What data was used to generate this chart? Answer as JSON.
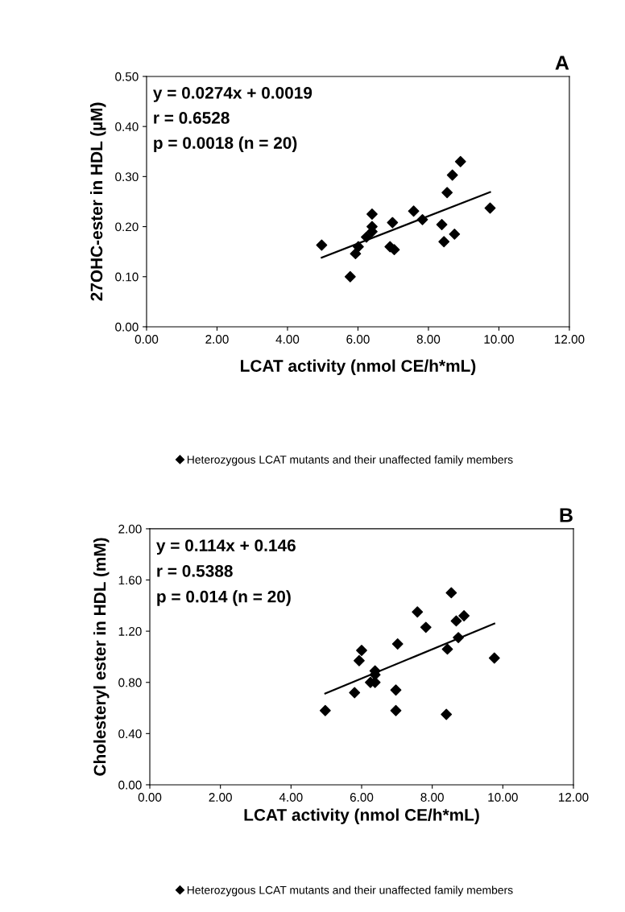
{
  "chart_data": [
    {
      "type": "scatter",
      "title": "A",
      "xlabel": "LCAT activity (nmol CE/h*mL)",
      "ylabel": "27OHC-ester in HDL (µM)",
      "annotations": [
        "y = 0.0274x + 0.0019",
        "r = 0.6528",
        "p = 0.0018 (n = 20)"
      ],
      "series": [
        {
          "name": "Heterozygous LCAT mutants and their unaffected family members",
          "color": "#000000",
          "marker": "diamond",
          "x": [
            4.97,
            5.78,
            5.93,
            6.01,
            6.24,
            6.4,
            6.4,
            6.4,
            6.91,
            7.03,
            6.98,
            7.58,
            7.83,
            8.38,
            8.44,
            8.53,
            8.68,
            8.74,
            8.91,
            9.75
          ],
          "values": [
            0.163,
            0.1,
            0.146,
            0.16,
            0.179,
            0.19,
            0.2,
            0.225,
            0.16,
            0.154,
            0.208,
            0.231,
            0.214,
            0.204,
            0.17,
            0.268,
            0.303,
            0.185,
            0.33,
            0.237
          ]
        },
        {
          "type": "line",
          "color": "#000000",
          "marker": "none",
          "x": [
            4.97,
            9.75
          ],
          "values": [
            0.138,
            0.269
          ]
        }
      ],
      "xlim": [
        0,
        12
      ],
      "xticks": [
        {
          "value": 0,
          "label": "0.00"
        },
        {
          "value": 2,
          "label": "2.00"
        },
        {
          "value": 4,
          "label": "4.00"
        },
        {
          "value": 6,
          "label": "6.00"
        },
        {
          "value": 8,
          "label": "8.00"
        },
        {
          "value": 10,
          "label": "10.00"
        },
        {
          "value": 12,
          "label": "12.00"
        }
      ],
      "ylim": [
        0,
        0.5
      ],
      "yticks": [
        {
          "value": 0,
          "label": "0.00"
        },
        {
          "value": 0.1,
          "label": "0.10"
        },
        {
          "value": 0.2,
          "label": "0.20"
        },
        {
          "value": 0.3,
          "label": "0.30"
        },
        {
          "value": 0.4,
          "label": "0.40"
        },
        {
          "value": 0.5,
          "label": "0.50"
        }
      ],
      "grid": false,
      "legend": "bottom"
    },
    {
      "type": "scatter",
      "title": "B",
      "xlabel": "LCAT activity (nmol CE/h*mL)",
      "ylabel": "Cholesteryl ester in HDL (mM)",
      "annotations": [
        "y = 0.114x + 0.146",
        "r = 0.5388",
        "p = 0.014 (n = 20)"
      ],
      "series": [
        {
          "name": "Heterozygous LCAT mutants and their unaffected family members",
          "color": "#000000",
          "marker": "diamond",
          "x": [
            4.97,
            5.8,
            5.93,
            6.0,
            6.25,
            6.38,
            6.38,
            6.38,
            6.97,
            6.97,
            7.02,
            7.58,
            7.82,
            8.4,
            8.43,
            8.54,
            8.68,
            8.74,
            8.9,
            9.76
          ],
          "values": [
            0.58,
            0.72,
            0.97,
            1.05,
            0.8,
            0.8,
            0.86,
            0.89,
            0.74,
            0.58,
            1.1,
            1.35,
            1.23,
            0.55,
            1.06,
            1.5,
            1.28,
            1.15,
            1.32,
            0.99
          ]
        },
        {
          "type": "line",
          "color": "#000000",
          "marker": "none",
          "x": [
            4.97,
            9.76
          ],
          "values": [
            0.713,
            1.259
          ]
        }
      ],
      "xlim": [
        0,
        12
      ],
      "xticks": [
        {
          "value": 0,
          "label": "0.00"
        },
        {
          "value": 2,
          "label": "2.00"
        },
        {
          "value": 4,
          "label": "4.00"
        },
        {
          "value": 6,
          "label": "6.00"
        },
        {
          "value": 8,
          "label": "8.00"
        },
        {
          "value": 10,
          "label": "10.00"
        },
        {
          "value": 12,
          "label": "12.00"
        }
      ],
      "ylim": [
        0,
        2
      ],
      "yticks": [
        {
          "value": 0,
          "label": "0.00"
        },
        {
          "value": 0.4,
          "label": "0.40"
        },
        {
          "value": 0.8,
          "label": "0.80"
        },
        {
          "value": 1.2,
          "label": "1.20"
        },
        {
          "value": 1.6,
          "label": "1.60"
        },
        {
          "value": 2.0,
          "label": "2.00"
        }
      ],
      "grid": false,
      "legend": "bottom"
    }
  ]
}
